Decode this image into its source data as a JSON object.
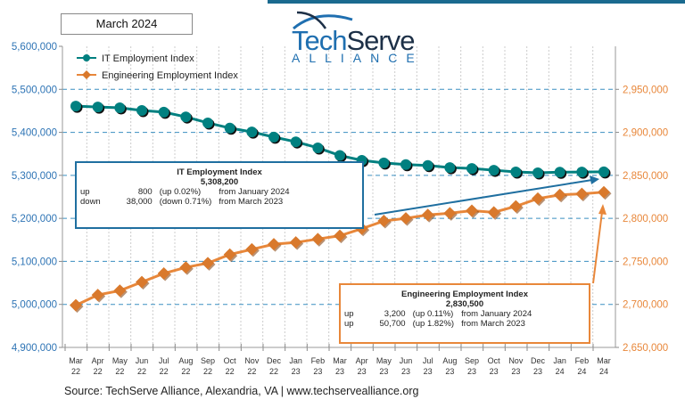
{
  "period_label": "March 2024",
  "logo": {
    "text_1": "Tech",
    "text_2": "Serve",
    "text_3": "ALLIANCE"
  },
  "source": "Source: TechServe Alliance, Alexandria, VA | www.techservealliance.org",
  "it_box": {
    "title": "IT Employment Index",
    "value": "5,308,200",
    "rows": [
      [
        "up",
        "800",
        "(up 0.02%)",
        "from  January 2024"
      ],
      [
        "down",
        "38,000",
        "(down 0.71%)",
        "from March 2023"
      ]
    ]
  },
  "eng_box": {
    "title": "Engineering Employment Index",
    "value": "2,830,500",
    "rows": [
      [
        "up",
        "3,200",
        "(up 0.11%)",
        "from  January 2024"
      ],
      [
        "up",
        "50,700",
        "(up 1.82%)",
        "from  March 2023"
      ]
    ]
  },
  "chart_data": {
    "type": "line",
    "grid": true,
    "legend_position": "top-left",
    "categories": [
      [
        "Mar",
        "22"
      ],
      [
        "Apr",
        "22"
      ],
      [
        "May",
        "22"
      ],
      [
        "Jun",
        "22"
      ],
      [
        "Jul",
        "22"
      ],
      [
        "Aug",
        "22"
      ],
      [
        "Sep",
        "22"
      ],
      [
        "Oct",
        "22"
      ],
      [
        "Nov",
        "22"
      ],
      [
        "Dec",
        "22"
      ],
      [
        "Jan",
        "23"
      ],
      [
        "Feb",
        "23"
      ],
      [
        "Mar",
        "23"
      ],
      [
        "Apr",
        "23"
      ],
      [
        "May",
        "23"
      ],
      [
        "Jun",
        "23"
      ],
      [
        "Jul",
        "23"
      ],
      [
        "Aug",
        "23"
      ],
      [
        "Sep",
        "23"
      ],
      [
        "Oct",
        "23"
      ],
      [
        "Nov",
        "23"
      ],
      [
        "Dec",
        "23"
      ],
      [
        "Jan",
        "24"
      ],
      [
        "Feb",
        "24"
      ],
      [
        "Mar",
        "24"
      ]
    ],
    "y_left": {
      "min": 4900000,
      "max": 5600000,
      "ticks": [
        "4,900,000",
        "5,000,000",
        "5,100,000",
        "5,200,000",
        "5,300,000",
        "5,400,000",
        "5,500,000",
        "5,600,000"
      ],
      "color": "#2e74b5"
    },
    "y_right": {
      "min": 2650000,
      "max": 3000000,
      "ticks": [
        "2,650,000",
        "2,700,000",
        "2,750,000",
        "2,800,000",
        "2,850,000",
        "2,900,000",
        "2,950,000"
      ],
      "color": "#e8873a"
    },
    "series": [
      {
        "name": "IT Employment Index",
        "axis": "left",
        "color": "#008080",
        "marker": "circle",
        "values": [
          5461000,
          5459000,
          5457000,
          5451000,
          5447000,
          5436000,
          5422000,
          5410000,
          5401000,
          5389000,
          5378000,
          5364000,
          5346200,
          5335000,
          5329000,
          5325000,
          5323000,
          5318000,
          5316000,
          5312000,
          5308000,
          5306000,
          5307400,
          5307800,
          5308200
        ]
      },
      {
        "name": "Engineering Employment Index",
        "axis": "right",
        "color": "#e8873a",
        "marker": "diamond",
        "values": [
          2699000,
          2711000,
          2716000,
          2726000,
          2736000,
          2743000,
          2748000,
          2758000,
          2764000,
          2770000,
          2772000,
          2776000,
          2779800,
          2788000,
          2797000,
          2800000,
          2804000,
          2806000,
          2809000,
          2807000,
          2814000,
          2823000,
          2827300,
          2828500,
          2830500
        ]
      }
    ]
  }
}
